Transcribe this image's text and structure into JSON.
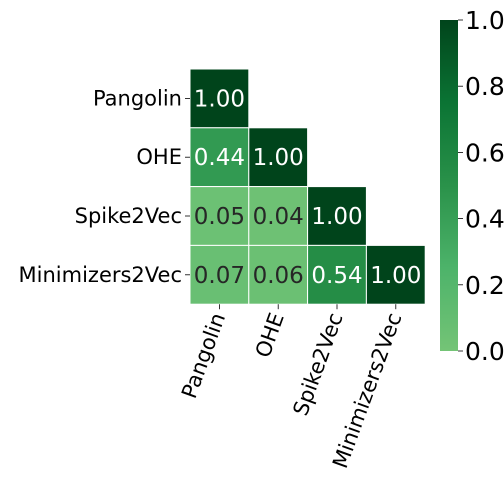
{
  "chart_data": {
    "type": "heatmap",
    "mask": "lower-triangle",
    "rows": [
      "Pangolin",
      "OHE",
      "Spike2Vec",
      "Minimizers2Vec"
    ],
    "cols": [
      "Pangolin",
      "OHE",
      "Spike2Vec",
      "Minimizers2Vec"
    ],
    "values": [
      [
        1.0,
        null,
        null,
        null
      ],
      [
        0.44,
        1.0,
        null,
        null
      ],
      [
        0.05,
        0.04,
        1.0,
        null
      ],
      [
        0.07,
        0.06,
        0.54,
        1.0
      ]
    ],
    "value_format": "0.00",
    "colorbar": {
      "min": 0.0,
      "max": 1.0,
      "ticks": [
        "0.0",
        "0.2",
        "0.4",
        "0.6",
        "0.8",
        "1.0"
      ],
      "colormap": "Greens",
      "color_low": "#74c476",
      "color_high": "#00441b"
    },
    "cell_border_color": "#ffffff",
    "title": "",
    "xlabel": "",
    "ylabel": ""
  }
}
